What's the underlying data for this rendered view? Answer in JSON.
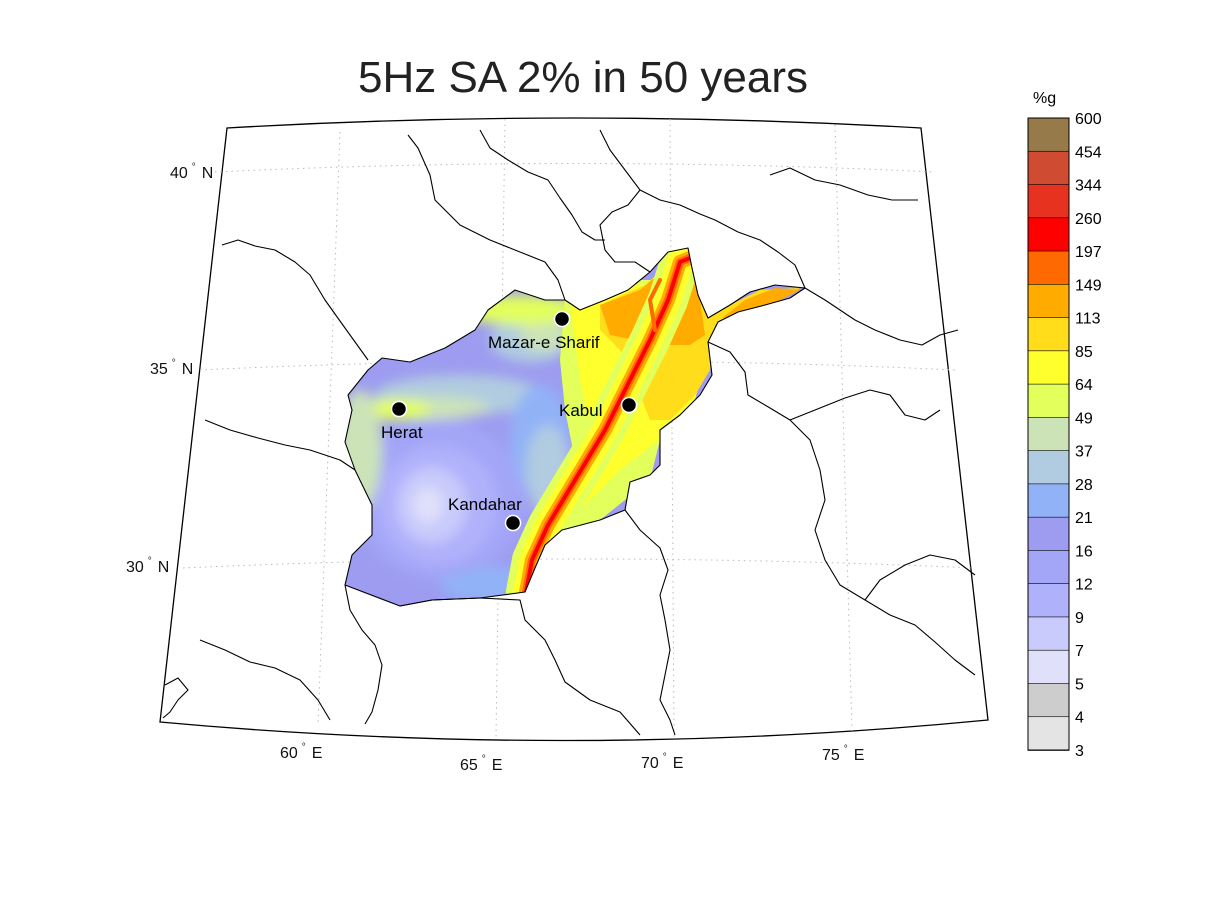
{
  "title": "5Hz SA 2% in 50 years",
  "colorbar": {
    "unit": "%g",
    "levels": [
      "600",
      "454",
      "344",
      "260",
      "197",
      "149",
      "113",
      "85",
      "64",
      "49",
      "37",
      "28",
      "21",
      "16",
      "12",
      "9",
      "7",
      "5",
      "4",
      "3"
    ],
    "colors": [
      "#977a49",
      "#cf4b32",
      "#e6321e",
      "#ff0000",
      "#ff6a00",
      "#ffab00",
      "#ffdd1a",
      "#ffff2e",
      "#e2ff5c",
      "#cce3b8",
      "#b1cce0",
      "#92b2f7",
      "#9d9cf0",
      "#a3a5f7",
      "#b0b1fb",
      "#c8cbfb",
      "#e0e0fb",
      "#cdcdcd",
      "#e4e4e4",
      "#ffffff"
    ]
  },
  "lat_ticks": [
    {
      "label": "40",
      "hem": "N"
    },
    {
      "label": "35",
      "hem": "N"
    },
    {
      "label": "30",
      "hem": "N"
    }
  ],
  "lon_ticks": [
    {
      "label": "60",
      "hem": "E"
    },
    {
      "label": "65",
      "hem": "E"
    },
    {
      "label": "70",
      "hem": "E"
    },
    {
      "label": "75",
      "hem": "E"
    }
  ],
  "cities": [
    {
      "name": "Mazar-e Sharif"
    },
    {
      "name": "Kabul"
    },
    {
      "name": "Herat"
    },
    {
      "name": "Kandahar"
    }
  ]
}
